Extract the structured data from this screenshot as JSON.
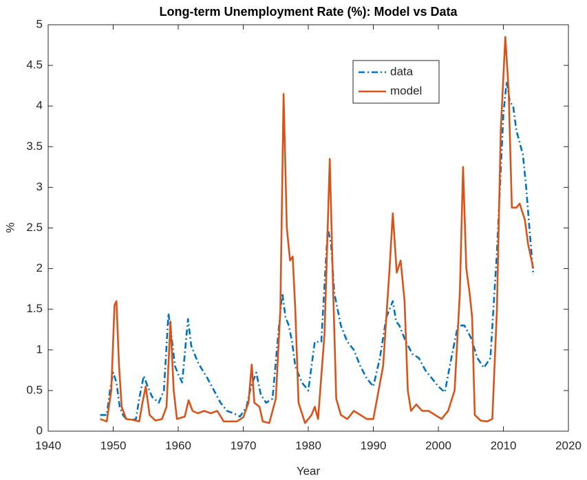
{
  "chart_data": {
    "type": "line",
    "title": "Long-term Unemployment Rate (%): Model vs Data",
    "xlabel": "Year",
    "ylabel": "%",
    "xlim": [
      1940,
      2020
    ],
    "xticks": [
      1940,
      1950,
      1960,
      1970,
      1980,
      1990,
      2000,
      2010,
      2020
    ],
    "ylim": [
      0,
      5
    ],
    "yticks": [
      0,
      0.5,
      1,
      1.5,
      2,
      2.5,
      3,
      3.5,
      4,
      4.5,
      5
    ],
    "series": [
      {
        "name": "data",
        "color": "#0072BD",
        "dash": "dashdot",
        "x": [
          1948,
          1949,
          1949.5,
          1950,
          1950.5,
          1951,
          1951.5,
          1952,
          1953,
          1953.5,
          1954,
          1954.7,
          1955.3,
          1956,
          1957,
          1957.8,
          1958.5,
          1959,
          1959.5,
          1960,
          1960.6,
          1961.5,
          1962,
          1963,
          1963.5,
          1964.5,
          1965.5,
          1966.5,
          1967.5,
          1968.5,
          1969.5,
          1970.5,
          1971.2,
          1972,
          1972.7,
          1973.5,
          1974.5,
          1975.5,
          1976,
          1976.5,
          1977,
          1977.5,
          1978,
          1979,
          1980,
          1981,
          1982,
          1983,
          1983.5,
          1984,
          1985,
          1986,
          1987,
          1988,
          1989,
          1990,
          1991,
          1992,
          1993,
          1993.5,
          1994,
          1995,
          1996,
          1997,
          1998,
          1999,
          2000,
          2001,
          2002,
          2003,
          2004,
          2005,
          2006,
          2007,
          2008,
          2009,
          2010,
          2010.5,
          2011,
          2011.5,
          2012,
          2013,
          2013.5,
          2014,
          2014.6
        ],
        "values": [
          0.2,
          0.2,
          0.5,
          0.72,
          0.6,
          0.3,
          0.2,
          0.15,
          0.14,
          0.15,
          0.4,
          0.68,
          0.55,
          0.42,
          0.35,
          0.5,
          1.45,
          1.15,
          0.8,
          0.7,
          0.6,
          1.38,
          1.05,
          0.85,
          0.78,
          0.65,
          0.5,
          0.35,
          0.25,
          0.22,
          0.18,
          0.3,
          0.55,
          0.72,
          0.45,
          0.35,
          0.4,
          1.3,
          1.7,
          1.4,
          1.3,
          1.1,
          0.8,
          0.6,
          0.5,
          1.1,
          1.1,
          2.5,
          2.3,
          1.7,
          1.3,
          1.1,
          1.0,
          0.8,
          0.65,
          0.55,
          0.9,
          1.4,
          1.6,
          1.35,
          1.3,
          1.1,
          0.95,
          0.9,
          0.75,
          0.65,
          0.55,
          0.48,
          0.9,
          1.3,
          1.3,
          1.15,
          0.9,
          0.78,
          0.9,
          2.2,
          3.9,
          4.3,
          4.05,
          4.0,
          3.7,
          3.4,
          3.0,
          2.5,
          1.92
        ]
      },
      {
        "name": "model",
        "color": "#D95319",
        "dash": "solid",
        "x": [
          1948,
          1949,
          1949.7,
          1950.2,
          1950.5,
          1950.9,
          1951.3,
          1952,
          1953,
          1954,
          1954.5,
          1955,
          1955.6,
          1956.5,
          1957.5,
          1958.2,
          1958.8,
          1959.3,
          1959.8,
          1961,
          1961.6,
          1962.2,
          1963,
          1964,
          1965,
          1966,
          1967,
          1968,
          1969,
          1970,
          1970.8,
          1971.3,
          1971.7,
          1972.5,
          1973,
          1974,
          1975,
          1975.7,
          1976.2,
          1976.7,
          1977.2,
          1977.6,
          1978,
          1978.5,
          1979.5,
          1980.5,
          1981,
          1981.5,
          1982.5,
          1983.3,
          1983.8,
          1984.3,
          1985,
          1986,
          1987,
          1988,
          1989,
          1990,
          1991.5,
          1992.5,
          1993,
          1993.6,
          1994.2,
          1994.8,
          1995.3,
          1995.8,
          1996.6,
          1997.5,
          1998.5,
          1999.5,
          2000.5,
          2001.5,
          2002.5,
          2003.3,
          2003.8,
          2004.3,
          2004.8,
          2005.2,
          2005.6,
          2006.5,
          2007.5,
          2008.3,
          2009,
          2009.6,
          2010.3,
          2010.8,
          2011.3,
          2012,
          2012.5,
          2013.3,
          2013.8,
          2014.6
        ],
        "values": [
          0.15,
          0.12,
          0.5,
          1.55,
          1.6,
          0.8,
          0.3,
          0.15,
          0.14,
          0.12,
          0.35,
          0.55,
          0.2,
          0.13,
          0.15,
          0.3,
          1.35,
          0.5,
          0.15,
          0.18,
          0.38,
          0.25,
          0.22,
          0.25,
          0.22,
          0.25,
          0.12,
          0.12,
          0.12,
          0.17,
          0.35,
          0.82,
          0.35,
          0.3,
          0.12,
          0.1,
          0.4,
          1.5,
          4.15,
          2.5,
          2.1,
          2.15,
          1.5,
          0.35,
          0.1,
          0.2,
          0.3,
          0.15,
          1.2,
          3.35,
          1.8,
          0.4,
          0.2,
          0.15,
          0.25,
          0.2,
          0.15,
          0.15,
          0.8,
          2.0,
          2.68,
          1.95,
          2.1,
          1.6,
          0.5,
          0.25,
          0.33,
          0.25,
          0.25,
          0.2,
          0.15,
          0.25,
          0.5,
          1.7,
          3.25,
          2.0,
          1.7,
          1.4,
          0.2,
          0.13,
          0.12,
          0.15,
          1.5,
          3.7,
          4.85,
          4.2,
          2.75,
          2.75,
          2.8,
          2.6,
          2.3,
          2.0
        ]
      }
    ]
  }
}
